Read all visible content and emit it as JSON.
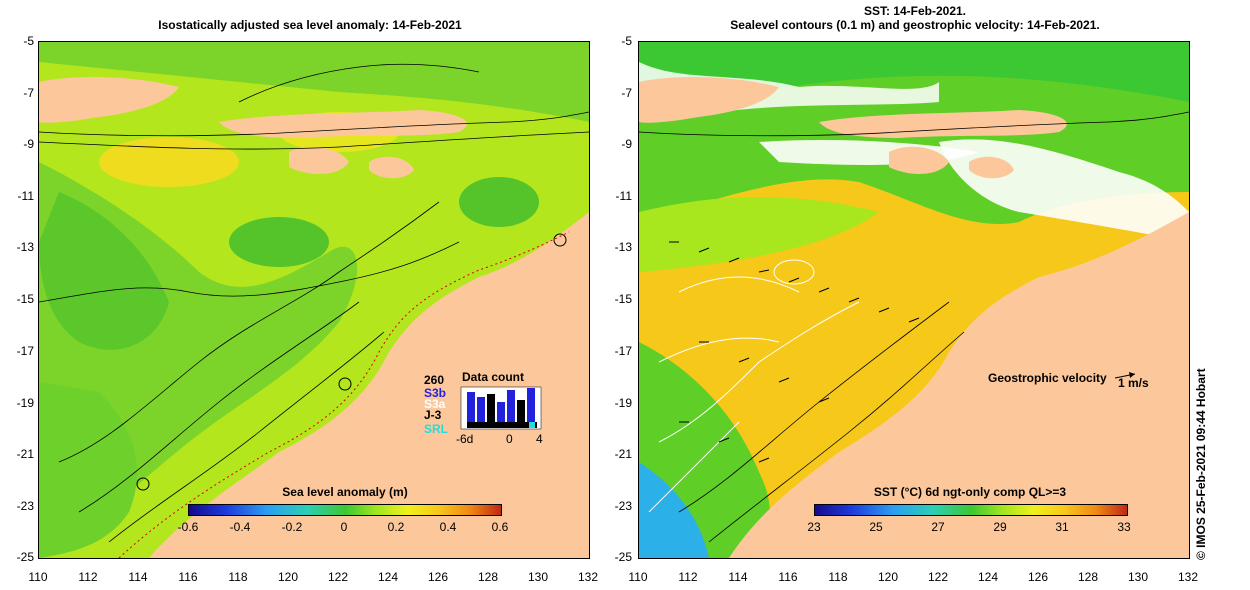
{
  "left_panel": {
    "title": "Isostatically adjusted sea level anomaly: 14-Feb-2021",
    "colorbar": {
      "title": "Sea level anomaly (m)",
      "labels": [
        "-0.6",
        "-0.4",
        "-0.2",
        "0",
        "0.2",
        "0.4",
        "0.6"
      ]
    },
    "inset": {
      "title": "Data count",
      "max_label": "260",
      "satellites": [
        "S3b",
        "S3a",
        "J-3",
        "SRL"
      ],
      "satellite_colors": [
        "#2222dd",
        "#ffffff",
        "#000000",
        "#22dddd"
      ],
      "x_labels": [
        "-6d",
        "0",
        "4"
      ]
    }
  },
  "right_panel": {
    "title_line1": "SST: 14-Feb-2021.",
    "title_line2": "Sealevel contours (0.1 m) and geostrophic velocity: 14-Feb-2021.",
    "colorbar": {
      "title": "SST (°C) 6d ngt-only comp QL>=3",
      "labels": [
        "23",
        "25",
        "27",
        "29",
        "31",
        "33"
      ]
    },
    "velocity_label": "Geostrophic velocity",
    "velocity_unit": "1 m/s"
  },
  "axes": {
    "y_ticks": [
      "-5",
      "-7",
      "-9",
      "-11",
      "-13",
      "-15",
      "-17",
      "-19",
      "-21",
      "-23",
      "-25"
    ],
    "x_ticks": [
      "110",
      "112",
      "114",
      "116",
      "118",
      "120",
      "122",
      "124",
      "126",
      "128",
      "130",
      "132"
    ]
  },
  "credit": "© IMOS 25-Feb-2021 09:44 Hobart",
  "colors": {
    "land": "#fcc89b",
    "ocean_green": "#5fce27",
    "ocean_yellow_green": "#c8f01e",
    "sst_orange": "#f6c81a",
    "sst_blue": "#2bb0e8"
  }
}
